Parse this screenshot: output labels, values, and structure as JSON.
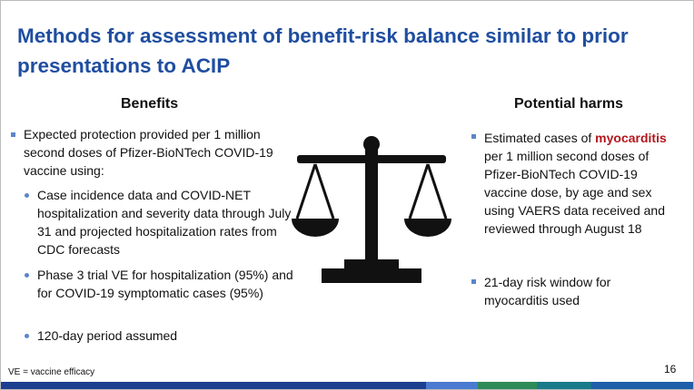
{
  "title": "Methods for assessment of benefit-risk balance similar to prior presentations to ACIP",
  "benefits": {
    "heading": "Benefits",
    "items": [
      {
        "text": "Expected protection provided per 1 million second doses of Pfizer-BioNTech COVID-19 vaccine using:",
        "subitems": [
          "Case incidence data and COVID-NET hospitalization and severity data through July 31 and projected hospitalization rates from CDC forecasts",
          "Phase 3 trial VE for hospitalization (95%) and for COVID-19 symptomatic cases (95%)",
          "120-day period assumed"
        ]
      }
    ]
  },
  "harms": {
    "heading": "Potential harms",
    "items": [
      {
        "parts": [
          "Estimated cases of",
          "myocarditis",
          "per 1 million second doses of Pfizer-BioNTech COVID-19 vaccine dose, by age and sex using VAERS data received and reviewed through August 18"
        ]
      },
      {
        "text": "21-day risk window for myocarditis used"
      }
    ]
  },
  "footnote": "VE = vaccine efficacy",
  "page_number": 16
}
